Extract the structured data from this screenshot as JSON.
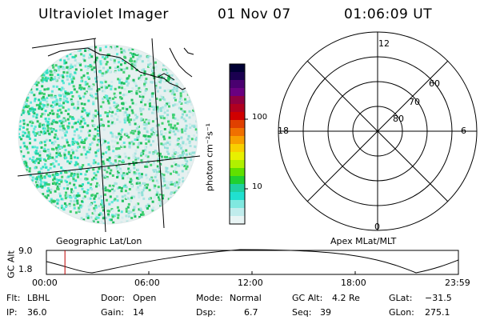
{
  "header": {
    "title": "Ultraviolet Imager",
    "date": "01 Nov 07",
    "time": "01:06:09 UT"
  },
  "colorbar": {
    "unit": "photon cm⁻²s⁻¹",
    "ticks": [
      "100",
      "10"
    ],
    "colors": [
      "#000033",
      "#1a0050",
      "#4a0070",
      "#6a0080",
      "#900040",
      "#b00020",
      "#d00000",
      "#e04000",
      "#f07000",
      "#f8a000",
      "#f8d000",
      "#e8f000",
      "#b0f000",
      "#60e000",
      "#20d030",
      "#20d0a0",
      "#20e0d0",
      "#80e8e0",
      "#c0ecec",
      "#e8f4f4"
    ]
  },
  "map_labels": {
    "left": "Geographic Lat/Lon",
    "right": "Apex MLat/MLT"
  },
  "polar": {
    "mlt_labels": {
      "top": "12",
      "left": "18",
      "right": "6",
      "bottom": "0"
    },
    "lat_labels": [
      "60",
      "70",
      "80"
    ]
  },
  "altitude_plot": {
    "ylabel": "GC Alt",
    "ymax": "9.0",
    "ymin": "1.8",
    "times": [
      "00:00",
      "06:00",
      "12:00",
      "18:00",
      "23:59"
    ],
    "current_time_frac": 0.045
  },
  "info": {
    "flt_label": "Flt:",
    "flt_value": "LBHL",
    "ip_label": "IP:",
    "ip_value": "36.0",
    "door_label": "Door:",
    "door_value": "Open",
    "gain_label": "Gain:",
    "gain_value": "14",
    "mode_label": "Mode:",
    "mode_value": "Normal",
    "dsp_label": "Dsp:",
    "dsp_value": "6.7",
    "gcalt_label": "GC Alt:",
    "gcalt_value": "4.2 Re",
    "seq_label": "Seq:",
    "seq_value": "39",
    "glat_label": "GLat:",
    "glat_value": "−31.5",
    "glon_label": "GLon:",
    "glon_value": "275.1"
  }
}
